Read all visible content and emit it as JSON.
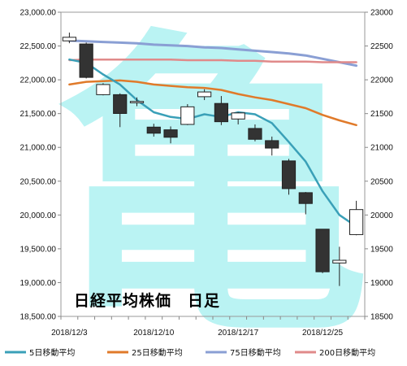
{
  "chart_data": {
    "type": "candlestick",
    "title": "日経平均株価　日足",
    "watermark_text": "亀",
    "y_left": {
      "range": [
        18500,
        23000
      ],
      "ticks": [
        18500,
        19000,
        19500,
        20000,
        20500,
        21000,
        21500,
        22000,
        22500,
        23000
      ],
      "tick_labels": [
        "18,500.00",
        "19,000.00",
        "19,500.00",
        "20,000.00",
        "20,500.00",
        "21,000.00",
        "21,500.00",
        "22,000.00",
        "22,500.00",
        "23,000.00"
      ]
    },
    "y_right": {
      "range": [
        18500,
        23000
      ],
      "ticks": [
        18500,
        19000,
        19500,
        20000,
        20500,
        21000,
        21500,
        22000,
        22500,
        23000
      ],
      "tick_labels": [
        "18500",
        "19000",
        "19500",
        "20000",
        "20500",
        "21000",
        "21500",
        "22000",
        "22500",
        "23000"
      ]
    },
    "x_tick_labels": [
      {
        "index": 0,
        "label": "2018/12/3"
      },
      {
        "index": 5,
        "label": "2018/12/10"
      },
      {
        "index": 10,
        "label": "2018/12/17"
      },
      {
        "index": 15,
        "label": "2018/12/25"
      }
    ],
    "grid": {
      "horizontal": false,
      "vertical": false
    },
    "legend_position": "bottom",
    "candles": [
      {
        "date": "2018/12/3",
        "open": 22576,
        "high": 22698,
        "low": 22541,
        "close": 22629
      },
      {
        "date": "2018/12/4",
        "open": 22530,
        "high": 22550,
        "low": 22020,
        "close": 22036
      },
      {
        "date": "2018/12/5",
        "open": 21780,
        "high": 21950,
        "low": 21770,
        "close": 21930
      },
      {
        "date": "2018/12/6",
        "open": 21780,
        "high": 21800,
        "low": 21300,
        "close": 21502
      },
      {
        "date": "2018/12/7",
        "open": 21660,
        "high": 21740,
        "low": 21610,
        "close": 21680
      },
      {
        "date": "2018/12/10",
        "open": 21300,
        "high": 21350,
        "low": 21160,
        "close": 21210
      },
      {
        "date": "2018/12/11",
        "open": 21260,
        "high": 21310,
        "low": 21060,
        "close": 21150
      },
      {
        "date": "2018/12/12",
        "open": 21340,
        "high": 21640,
        "low": 21330,
        "close": 21600
      },
      {
        "date": "2018/12/13",
        "open": 21750,
        "high": 21860,
        "low": 21700,
        "close": 21820
      },
      {
        "date": "2018/12/14",
        "open": 21650,
        "high": 21760,
        "low": 21330,
        "close": 21380
      },
      {
        "date": "2018/12/17",
        "open": 21420,
        "high": 21520,
        "low": 21340,
        "close": 21510
      },
      {
        "date": "2018/12/18",
        "open": 21280,
        "high": 21340,
        "low": 21090,
        "close": 21120
      },
      {
        "date": "2018/12/19",
        "open": 21100,
        "high": 21160,
        "low": 20880,
        "close": 20990
      },
      {
        "date": "2018/12/20",
        "open": 20800,
        "high": 20830,
        "low": 20300,
        "close": 20390
      },
      {
        "date": "2018/12/21",
        "open": 20330,
        "high": 20340,
        "low": 20010,
        "close": 20170
      },
      {
        "date": "2018/12/25",
        "open": 19790,
        "high": 19790,
        "low": 19140,
        "close": 19160
      },
      {
        "date": "2018/12/26",
        "open": 19290,
        "high": 19530,
        "low": 18950,
        "close": 19330
      },
      {
        "date": "2018/12/27",
        "open": 19710,
        "high": 20210,
        "low": 19700,
        "close": 20080
      }
    ],
    "series": [
      {
        "name": "5日移動平均",
        "color": "#3aa0b8",
        "values": [
          22300,
          22250,
          22080,
          21930,
          21700,
          21520,
          21450,
          21420,
          21490,
          21450,
          21520,
          21490,
          21360,
          21080,
          20790,
          20350,
          20000,
          19830
        ]
      },
      {
        "name": "25日移動平均",
        "color": "#e07a2a",
        "values": [
          21930,
          21970,
          21980,
          21990,
          21970,
          21930,
          21910,
          21890,
          21880,
          21850,
          21790,
          21740,
          21700,
          21640,
          21580,
          21480,
          21400,
          21330
        ]
      },
      {
        "name": "75日移動平均",
        "color": "#8a9fd4",
        "values": [
          22580,
          22570,
          22560,
          22550,
          22540,
          22520,
          22510,
          22500,
          22480,
          22470,
          22450,
          22430,
          22410,
          22390,
          22360,
          22310,
          22260,
          22210
        ]
      },
      {
        "name": "200日移動平均",
        "color": "#e08a8a",
        "values": [
          22290,
          22300,
          22300,
          22300,
          22300,
          22300,
          22300,
          22290,
          22290,
          22290,
          22280,
          22280,
          22270,
          22270,
          22270,
          22260,
          22260,
          22260
        ]
      }
    ]
  }
}
